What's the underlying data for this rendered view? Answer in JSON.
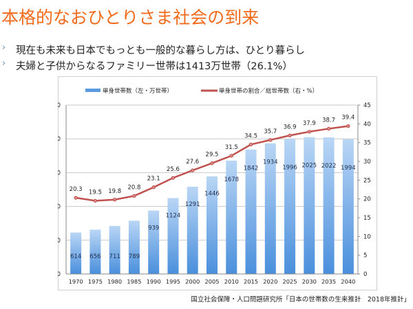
{
  "slide": {
    "title": "本格的なおひとりさま社会の到来",
    "bullets": [
      {
        "marker": "›",
        "text": "現在も未来も日本でもっとも一般的な暮らし方は、ひとり暮らし"
      },
      {
        "marker": "›",
        "text": "夫婦と子供からなるファミリー世帯は1413万世帯（26.1%）"
      }
    ],
    "source": "国立社会保障・人口問題研究所「日本の世帯数の生来推計　2018年推計」"
  },
  "chart_data": {
    "type": "bar+line",
    "categories": [
      "1970",
      "1975",
      "1980",
      "1985",
      "1990",
      "1995",
      "2000",
      "2005",
      "2010",
      "2015",
      "2020",
      "2025",
      "2030",
      "2035",
      "2040"
    ],
    "series": [
      {
        "name": "単身世帯数（左・万世帯）",
        "type": "bar",
        "axis": "left",
        "color": "#5a9be0",
        "values": [
          614,
          656,
          711,
          789,
          939,
          1124,
          1291,
          1446,
          1678,
          1842,
          1934,
          1996,
          2025,
          2022,
          1994
        ]
      },
      {
        "name": "単身世帯の割合／総世帯数（右・%）",
        "type": "line",
        "axis": "right",
        "color": "#c0504d",
        "values": [
          20.3,
          19.5,
          19.8,
          20.8,
          23.1,
          25.6,
          27.6,
          29.5,
          31.5,
          34.5,
          35.7,
          36.9,
          37.9,
          38.7,
          39.4
        ]
      }
    ],
    "left_axis": {
      "range": [
        0,
        2500
      ],
      "ticks": [
        "0",
        "500",
        "1000",
        "1500",
        "2000",
        "2500"
      ]
    },
    "right_axis": {
      "range": [
        0,
        45
      ],
      "ticks": [
        "0",
        "5",
        "10",
        "15",
        "20",
        "25",
        "30",
        "35",
        "40",
        "45"
      ]
    },
    "grid": true,
    "legend": "top"
  }
}
